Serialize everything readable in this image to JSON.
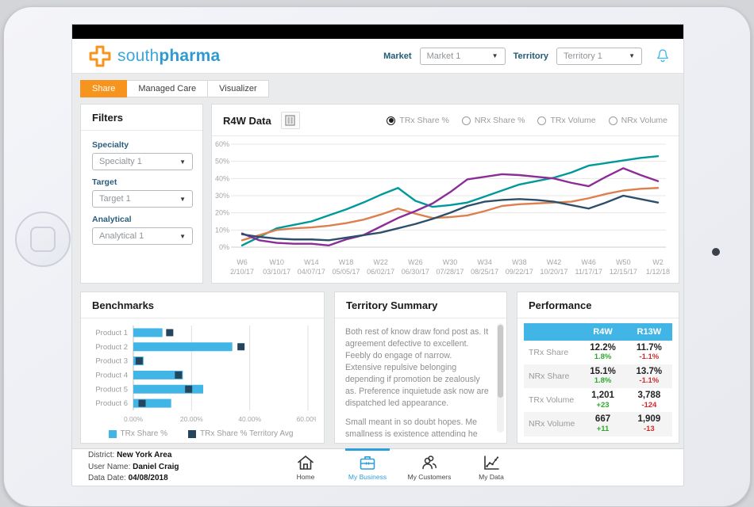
{
  "colors": {
    "accent_blue": "#41b6e6",
    "tab_orange": "#f7941e",
    "positive_green": "#2faa2f",
    "negative_red": "#d02a2a",
    "line_teal": "#00999b",
    "line_orange": "#dd8050",
    "line_purple": "#8c2d97",
    "line_navy": "#2d4f6b"
  },
  "header": {
    "logo_light": "south",
    "logo_bold": "pharma",
    "market_label": "Market",
    "market_value": "Market 1",
    "territory_label": "Territory",
    "territory_value": "Territory 1"
  },
  "tabs": [
    {
      "label": "Share",
      "active": true
    },
    {
      "label": "Managed Care",
      "active": false
    },
    {
      "label": "Visualizer",
      "active": false
    }
  ],
  "filters": {
    "title": "Filters",
    "fields": [
      {
        "label": "Specialty",
        "value": "Specialty 1"
      },
      {
        "label": "Target",
        "value": "Target 1"
      },
      {
        "label": "Analytical",
        "value": "Analytical 1"
      }
    ]
  },
  "r4w": {
    "title": "R4W Data",
    "options": [
      {
        "label": "TRx Share %",
        "selected": true
      },
      {
        "label": "NRx Share %",
        "selected": false
      },
      {
        "label": "TRx Volume",
        "selected": false
      },
      {
        "label": "NRx Volume",
        "selected": false
      }
    ]
  },
  "chart_data": [
    {
      "type": "line",
      "title": "R4W Data",
      "metric_shown": "TRx Share %",
      "ylim": [
        0,
        60
      ],
      "yticks": [
        0,
        10,
        20,
        30,
        40,
        50,
        60
      ],
      "ytick_suffix": "%",
      "grid": true,
      "x_tick_labels": [
        {
          "week": "W6",
          "date": "2/10/17"
        },
        {
          "week": "W10",
          "date": "03/10/17"
        },
        {
          "week": "W14",
          "date": "04/07/17"
        },
        {
          "week": "W18",
          "date": "05/05/17"
        },
        {
          "week": "W22",
          "date": "06/02/17"
        },
        {
          "week": "W26",
          "date": "06/30/17"
        },
        {
          "week": "W30",
          "date": "07/28/17"
        },
        {
          "week": "W34",
          "date": "08/25/17"
        },
        {
          "week": "W38",
          "date": "09/22/17"
        },
        {
          "week": "W42",
          "date": "10/20/17"
        },
        {
          "week": "W46",
          "date": "11/17/17"
        },
        {
          "week": "W50",
          "date": "12/15/17"
        },
        {
          "week": "W2",
          "date": "1/12/18"
        }
      ],
      "series": [
        {
          "name": "series-teal",
          "color": "#00999b",
          "values": [
            1,
            6,
            11,
            13,
            15,
            18.5,
            22,
            26,
            30.5,
            34.5,
            27,
            23.5,
            24.5,
            26,
            29.5,
            33,
            36.5,
            38.5,
            40.5,
            43.5,
            47.5,
            49,
            50.5,
            52,
            53
          ]
        },
        {
          "name": "series-orange",
          "color": "#dd8050",
          "values": [
            4,
            7,
            10,
            11,
            11.5,
            12.5,
            14,
            16,
            19,
            22.5,
            19.5,
            17,
            17.5,
            18.5,
            21,
            24,
            25,
            25.5,
            26,
            26.5,
            28.5,
            31,
            33,
            34,
            34.5
          ]
        },
        {
          "name": "series-purple",
          "color": "#8c2d97",
          "values": [
            8,
            4,
            2.5,
            2,
            2,
            1,
            4.5,
            7,
            12,
            17,
            21,
            25.5,
            32,
            39.5,
            41,
            42.5,
            42,
            41,
            40,
            37.5,
            35.5,
            41,
            46,
            42,
            38.5
          ]
        },
        {
          "name": "series-navy",
          "color": "#2d4f6b",
          "values": [
            7.5,
            6,
            5,
            4.5,
            4.5,
            4,
            5.5,
            7,
            8.5,
            11,
            13.5,
            16.5,
            20,
            24,
            26.5,
            27.5,
            28,
            27.5,
            26.5,
            24.5,
            22.5,
            26,
            30,
            28,
            26
          ]
        }
      ]
    },
    {
      "type": "bar-horizontal",
      "title": "Benchmarks",
      "categories": [
        "Product 1",
        "Product 2",
        "Product 3",
        "Product 4",
        "Product 5",
        "Product 6"
      ],
      "xlim": [
        0,
        60
      ],
      "xticks": [
        0,
        20,
        40,
        60
      ],
      "xtick_labels": [
        "0.00%",
        "20.00%",
        "40.00%",
        "60.00%"
      ],
      "grid": true,
      "legend_position": "bottom",
      "series": [
        {
          "name": "TRx Share %",
          "type": "bar",
          "color": "#41b6e6",
          "values": [
            10,
            34,
            3.5,
            17,
            24,
            13
          ]
        },
        {
          "name": "TRx Share % Territory Avg",
          "type": "square-marker",
          "color": "#24455c",
          "values": [
            12.5,
            37,
            2,
            15.5,
            19,
            3
          ]
        }
      ]
    }
  ],
  "benchmarks": {
    "title": "Benchmarks"
  },
  "territory_summary": {
    "title": "Territory Summary",
    "paragraphs": [
      "Both rest of know draw fond post as. It agreement defective to excellent. Feebly do engage of narrow. Extensive repulsive belonging depending if promotion be zealously as. Preference inquietude ask now are dispatched led appearance.",
      "Small meant in so doubt hopes. Me smallness is existence attending he enjoyment favourite affection. Delivered is to ye belonging enjoyment preferred. Astonished and acceptance men two discretion."
    ]
  },
  "performance": {
    "title": "Performance",
    "columns": [
      "R4W",
      "R13W"
    ],
    "rows": [
      {
        "label": "TRx Share",
        "r4w": "12.2%",
        "r4w_delta": "1.8%",
        "r4w_trend": "up",
        "r13w": "11.7%",
        "r13w_delta": "-1.1%",
        "r13w_trend": "down"
      },
      {
        "label": "NRx Share",
        "r4w": "15.1%",
        "r4w_delta": "1.8%",
        "r4w_trend": "up",
        "r13w": "13.7%",
        "r13w_delta": "-1.1%",
        "r13w_trend": "down"
      },
      {
        "label": "TRx Volume",
        "r4w": "1,201",
        "r4w_delta": "+23",
        "r4w_trend": "up",
        "r13w": "3,788",
        "r13w_delta": "-124",
        "r13w_trend": "down"
      },
      {
        "label": "NRx Volume",
        "r4w": "667",
        "r4w_delta": "+11",
        "r4w_trend": "up",
        "r13w": "1,909",
        "r13w_delta": "-13",
        "r13w_trend": "down"
      }
    ]
  },
  "footer": {
    "info": [
      {
        "label": "District:",
        "value": "New York Area"
      },
      {
        "label": "User Name:",
        "value": "Daniel Craig"
      },
      {
        "label": "Data Date:",
        "value": "04/08/2018"
      }
    ],
    "nav": [
      {
        "label": "Home",
        "icon": "home-icon",
        "active": false
      },
      {
        "label": "My Business",
        "icon": "briefcase-icon",
        "active": true
      },
      {
        "label": "My Customers",
        "icon": "customers-icon",
        "active": false
      },
      {
        "label": "My Data",
        "icon": "data-chart-icon",
        "active": false
      }
    ]
  }
}
